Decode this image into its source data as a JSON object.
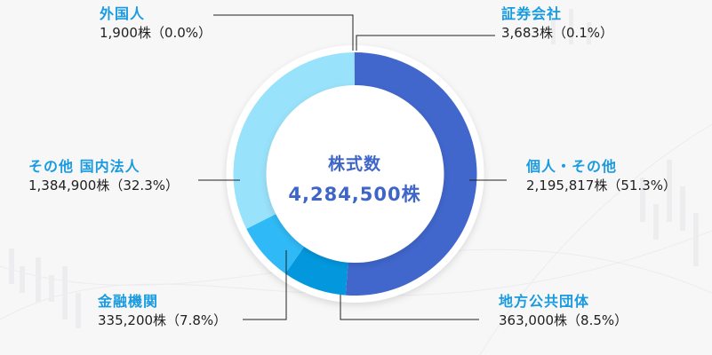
{
  "chart_data": {
    "type": "pie",
    "variant": "donut",
    "title": "株式数",
    "total_label": "4,284,500株",
    "total_value": 4284500,
    "unit": "株",
    "slices": [
      {
        "name": "個人・その他",
        "value": 2195817,
        "percent": 51.3,
        "color": "#4167cd"
      },
      {
        "name": "地方公共団体",
        "value": 363000,
        "percent": 8.5,
        "color": "#0398de"
      },
      {
        "name": "金融機関",
        "value": 335200,
        "percent": 7.8,
        "color": "#2fbaf7"
      },
      {
        "name": "その他 国内法人",
        "value": 1384900,
        "percent": 32.3,
        "color": "#99e2fb"
      },
      {
        "name": "外国人",
        "value": 1900,
        "percent": 0.0,
        "color": "#99e2fb"
      },
      {
        "name": "証券会社",
        "value": 3683,
        "percent": 0.1,
        "color": "#4167cd"
      }
    ],
    "legend_position": "callouts"
  },
  "center": {
    "title": "株式数",
    "total": "4,284,500株"
  },
  "labels": {
    "foreign": {
      "name": "外国人",
      "value": "1,900株（0.0%）"
    },
    "securities": {
      "name": "証券会社",
      "value": "3,683株（0.1%）"
    },
    "other_domestic": {
      "name": "その他 国内法人",
      "value": "1,384,900株（32.3%）"
    },
    "individual": {
      "name": "個人・その他",
      "value": "2,195,817株（51.3%）"
    },
    "financial": {
      "name": "金融機関",
      "value": "335,200株（7.8%）"
    },
    "local_gov": {
      "name": "地方公共団体",
      "value": "363,000株（8.5%）"
    }
  }
}
